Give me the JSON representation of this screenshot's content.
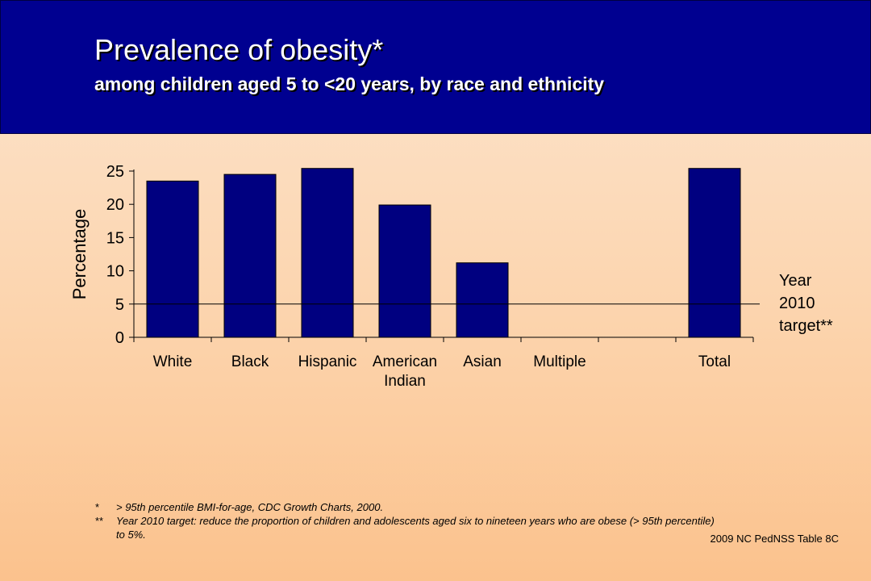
{
  "header": {
    "title": "Prevalence of obesity*",
    "subtitle": "among children aged 5 to <20 years, by race and ethnicity"
  },
  "colors": {
    "header_bg": "#000090",
    "bar": "#000080",
    "text": "#000000"
  },
  "chart_data": {
    "type": "bar",
    "title": "",
    "xlabel": "",
    "ylabel": "Percentage",
    "ylim": [
      0,
      25
    ],
    "yticks": [
      0,
      5,
      10,
      15,
      20,
      25
    ],
    "categories": [
      "White",
      "Black",
      "Hispanic",
      "American\nIndian",
      "Asian",
      "Multiple",
      "",
      "Total"
    ],
    "values": [
      23.5,
      24.5,
      25.4,
      19.9,
      11.2,
      null,
      null,
      25.4
    ],
    "grid": false,
    "reference_line": {
      "value": 5,
      "label_lines": [
        "Year",
        "2010",
        "target**"
      ]
    }
  },
  "footnotes": [
    {
      "mark": "*",
      "text": "> 95th percentile BMI-for-age, CDC Growth Charts, 2000."
    },
    {
      "mark": "**",
      "text": "Year 2010 target: reduce the proportion of children and adolescents aged six to nineteen years who are obese (> 95th percentile) to 5%."
    }
  ],
  "source": "2009 NC PedNSS Table 8C"
}
